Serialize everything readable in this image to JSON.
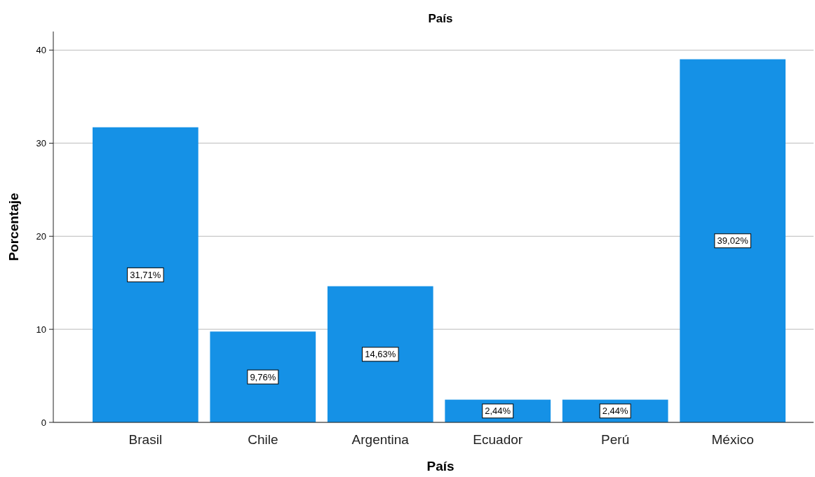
{
  "chart_data": {
    "type": "bar",
    "title": "País",
    "xlabel": "País",
    "ylabel": "Porcentaje",
    "categories": [
      "Brasil",
      "Chile",
      "Argentina",
      "Ecuador",
      "Perú",
      "México"
    ],
    "values": [
      31.71,
      9.76,
      14.63,
      2.44,
      2.44,
      39.02
    ],
    "value_labels": [
      "31,71%",
      "9,76%",
      "14,63%",
      "2,44%",
      "2,44%",
      "39,02%"
    ],
    "color": "#1591e6",
    "ylim": [
      0,
      42
    ],
    "yticks": [
      0,
      10,
      20,
      30,
      40
    ],
    "grid": "y"
  }
}
